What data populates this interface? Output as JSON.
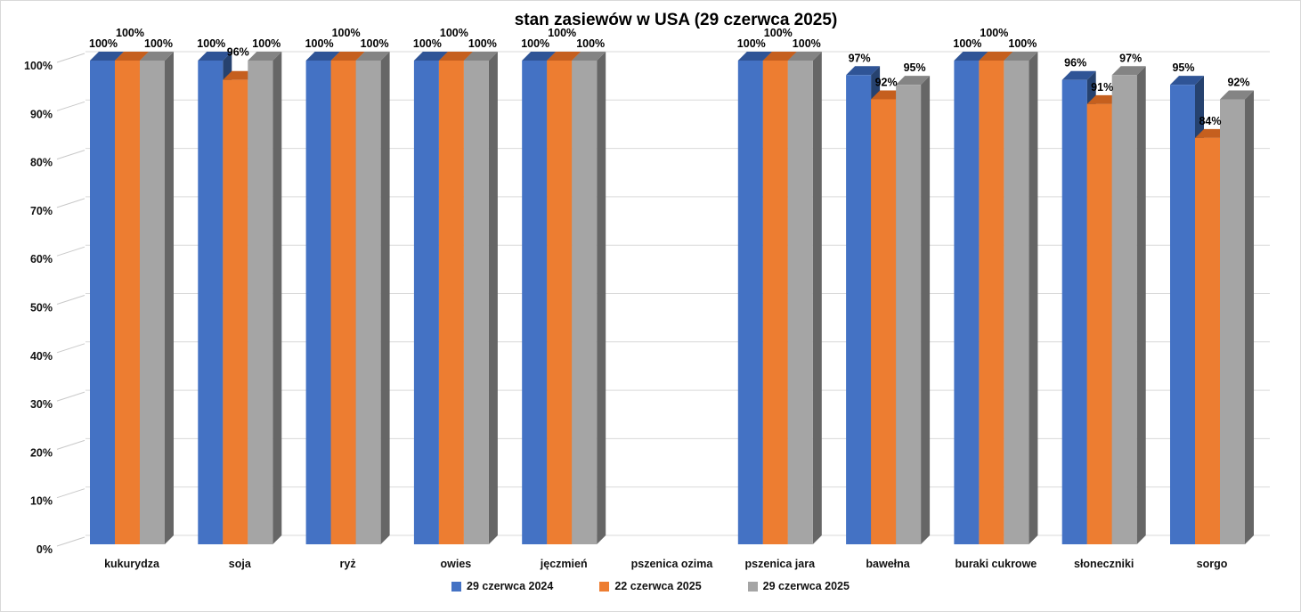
{
  "chart_data": {
    "type": "bar",
    "style": "3d-clustered-column",
    "title": "stan zasiewów w USA (29 czerwca 2025)",
    "xlabel": "",
    "ylabel": "",
    "ylim": [
      0,
      100
    ],
    "ytick_step": 10,
    "ytick_format": "percent",
    "grid": "horizontal",
    "legend_position": "bottom",
    "data_label_format": "percent",
    "categories": [
      "kukurydza",
      "soja",
      "ryż",
      "owies",
      "jęczmień",
      "pszenica ozima",
      "pszenica jara",
      "bawełna",
      "buraki cukrowe",
      "słoneczniki",
      "sorgo"
    ],
    "series": [
      {
        "name": "29 czerwca 2024",
        "color": "#4472C4",
        "color_top": "#2F5496",
        "color_side": "#26426F",
        "values": [
          100,
          100,
          100,
          100,
          100,
          null,
          100,
          97,
          100,
          96,
          95
        ]
      },
      {
        "name": "22 czerwca 2025",
        "color": "#ED7D31",
        "color_top": "#C55F1E",
        "color_side": "#9C4E14",
        "values": [
          100,
          96,
          100,
          100,
          100,
          null,
          100,
          92,
          100,
          91,
          84
        ]
      },
      {
        "name": "29 czerwca 2025",
        "color": "#A5A5A5",
        "color_top": "#848484",
        "color_side": "#666666",
        "values": [
          100,
          100,
          100,
          100,
          100,
          null,
          100,
          95,
          100,
          97,
          92
        ]
      }
    ],
    "gridline_color": "#d9d9d9",
    "tick_line_color": "#c9c9c9"
  }
}
